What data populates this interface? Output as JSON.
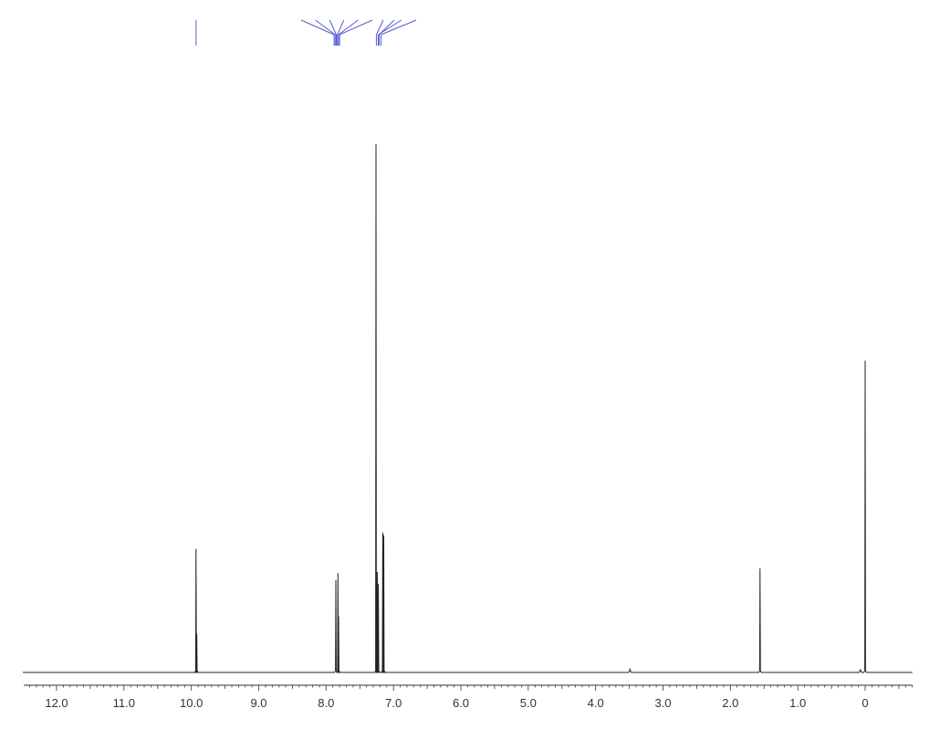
{
  "chart_data": {
    "type": "line",
    "title": "",
    "xlabel": "",
    "ylabel": "",
    "x_axis_reversed": true,
    "xlim": [
      12.5,
      -0.7
    ],
    "ylim": [
      0,
      1.0
    ],
    "grid": false,
    "legend": "none",
    "x_tick_labels": [
      {
        "value": 12.0,
        "label": "12.0"
      },
      {
        "value": 11.0,
        "label": "11.0"
      },
      {
        "value": 10.0,
        "label": "10.0"
      },
      {
        "value": 9.0,
        "label": "9.0"
      },
      {
        "value": 8.0,
        "label": "8.0"
      },
      {
        "value": 7.0,
        "label": "7.0"
      },
      {
        "value": 6.0,
        "label": "6.0"
      },
      {
        "value": 5.0,
        "label": "5.0"
      },
      {
        "value": 4.0,
        "label": "4.0"
      },
      {
        "value": 3.0,
        "label": "3.0"
      },
      {
        "value": 2.0,
        "label": "2.0"
      },
      {
        "value": 1.0,
        "label": "1.0"
      },
      {
        "value": 0.0,
        "label": "0"
      }
    ],
    "peaks": [
      {
        "shift": 9.93,
        "intensity": 0.234
      },
      {
        "shift": 9.92,
        "intensity": 0.073
      },
      {
        "shift": 7.855,
        "intensity": 0.175
      },
      {
        "shift": 7.825,
        "intensity": 0.188
      },
      {
        "shift": 7.815,
        "intensity": 0.106
      },
      {
        "shift": 7.26,
        "intensity": 1.0
      },
      {
        "shift": 7.24,
        "intensity": 0.19
      },
      {
        "shift": 7.225,
        "intensity": 0.168
      },
      {
        "shift": 7.16,
        "intensity": 0.265
      },
      {
        "shift": 7.145,
        "intensity": 0.26
      },
      {
        "shift": 3.49,
        "intensity": 0.006
      },
      {
        "shift": 1.56,
        "intensity": 0.197
      },
      {
        "shift": 0.0,
        "intensity": 0.59
      },
      {
        "shift": 0.07,
        "intensity": 0.005
      }
    ],
    "multiplet_annotations": [
      {
        "shift": 9.93,
        "style": "singlet",
        "lines": 1
      },
      {
        "shift": 7.84,
        "style": "fan",
        "lines": 6
      },
      {
        "shift": 7.24,
        "style": "fan",
        "lines": 2
      },
      {
        "shift": 7.2,
        "style": "fan",
        "lines": 2
      }
    ],
    "colors": {
      "spectrum": "#222222",
      "annotation": "#5a5ad6",
      "axis": "#333333"
    }
  }
}
